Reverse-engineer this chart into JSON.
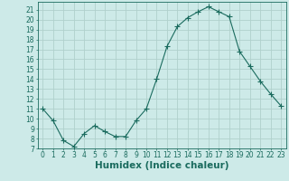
{
  "x": [
    0,
    1,
    2,
    3,
    4,
    5,
    6,
    7,
    8,
    9,
    10,
    11,
    12,
    13,
    14,
    15,
    16,
    17,
    18,
    19,
    20,
    21,
    22,
    23
  ],
  "y": [
    11.0,
    9.8,
    7.8,
    7.2,
    8.5,
    9.3,
    8.7,
    8.2,
    8.2,
    9.8,
    11.0,
    14.0,
    17.3,
    19.3,
    20.2,
    20.8,
    21.3,
    20.8,
    20.3,
    16.8,
    15.3,
    13.8,
    12.5,
    11.3
  ],
  "line_color": "#1a6b5e",
  "marker": "+",
  "marker_size": 4,
  "bg_color": "#cdeae8",
  "grid_color": "#b0d0cc",
  "tick_color": "#1a6b5e",
  "label_color": "#1a6b5e",
  "xlabel": "Humidex (Indice chaleur)",
  "xlabel_fontsize": 7.5,
  "xlim": [
    -0.5,
    23.5
  ],
  "ylim": [
    7,
    21.8
  ],
  "yticks": [
    7,
    8,
    9,
    10,
    11,
    12,
    13,
    14,
    15,
    16,
    17,
    18,
    19,
    20,
    21
  ],
  "xticks": [
    0,
    1,
    2,
    3,
    4,
    5,
    6,
    7,
    8,
    9,
    10,
    11,
    12,
    13,
    14,
    15,
    16,
    17,
    18,
    19,
    20,
    21,
    22,
    23
  ],
  "tick_fontsize": 5.5
}
